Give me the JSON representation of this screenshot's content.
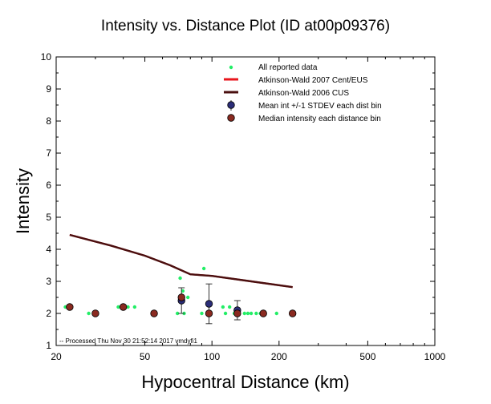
{
  "chart_data": {
    "type": "scatter",
    "title": "Intensity vs. Distance Plot (ID at00p09376)",
    "xlabel": "Hypocentral Distance (km)",
    "ylabel": "Intensity",
    "xscale": "log",
    "xlim": [
      20,
      1000
    ],
    "ylim": [
      1,
      10
    ],
    "x_ticks": [
      20,
      50,
      100,
      200,
      500,
      1000
    ],
    "y_ticks": [
      1,
      2,
      3,
      4,
      5,
      6,
      7,
      8,
      9,
      10
    ],
    "footer": "-- Processed Thu Nov 30 21:52:14 2017 vmdyfi1",
    "legend_position": "top-right",
    "series": [
      {
        "name": "All reported data",
        "kind": "points",
        "color": "#22ee66",
        "points": [
          [
            22,
            2.2
          ],
          [
            28,
            2.0
          ],
          [
            30,
            2.0
          ],
          [
            38,
            2.2
          ],
          [
            42,
            2.2
          ],
          [
            45,
            2.2
          ],
          [
            55,
            2.0
          ],
          [
            70,
            2.0
          ],
          [
            72,
            3.1
          ],
          [
            74,
            2.7
          ],
          [
            75,
            2.0
          ],
          [
            78,
            2.5
          ],
          [
            90,
            2.0
          ],
          [
            92,
            3.4
          ],
          [
            98,
            2.0
          ],
          [
            112,
            2.2
          ],
          [
            115,
            2.0
          ],
          [
            120,
            2.2
          ],
          [
            126,
            2.0
          ],
          [
            130,
            2.0
          ],
          [
            140,
            2.0
          ],
          [
            145,
            2.0
          ],
          [
            150,
            2.0
          ],
          [
            158,
            2.0
          ],
          [
            165,
            2.0
          ],
          [
            195,
            2.0
          ]
        ]
      },
      {
        "name": "Atkinson-Wald 2007 Cent/EUS",
        "kind": "line",
        "color": "#e8161c",
        "points": [
          [
            23,
            4.45
          ],
          [
            35,
            4.12
          ],
          [
            50,
            3.8
          ],
          [
            65,
            3.5
          ],
          [
            80,
            3.22
          ],
          [
            100,
            3.17
          ],
          [
            150,
            3.0
          ],
          [
            230,
            2.82
          ]
        ]
      },
      {
        "name": "Atkinson-Wald 2006 CUS",
        "kind": "line",
        "color": "#4a0f0f",
        "points": [
          [
            23,
            4.45
          ],
          [
            35,
            4.12
          ],
          [
            50,
            3.8
          ],
          [
            65,
            3.5
          ],
          [
            80,
            3.22
          ],
          [
            100,
            3.17
          ],
          [
            150,
            3.0
          ],
          [
            230,
            2.82
          ]
        ]
      },
      {
        "name": "Mean int +/-1 STDEV each dist bin",
        "kind": "errorbar",
        "color": "#2b2d78",
        "points": [
          {
            "x": 73,
            "y": 2.4,
            "sd": 0.4
          },
          {
            "x": 97,
            "y": 2.3,
            "sd": 0.62
          },
          {
            "x": 130,
            "y": 2.1,
            "sd": 0.3
          }
        ]
      },
      {
        "name": "Median intensity each distance bin",
        "kind": "points",
        "color": "#8a2a20",
        "points": [
          [
            23,
            2.2
          ],
          [
            30,
            2.0
          ],
          [
            40,
            2.2
          ],
          [
            55,
            2.0
          ],
          [
            73,
            2.5
          ],
          [
            97,
            2.0
          ],
          [
            130,
            2.0
          ],
          [
            170,
            2.0
          ],
          [
            230,
            2.0
          ]
        ]
      }
    ]
  }
}
